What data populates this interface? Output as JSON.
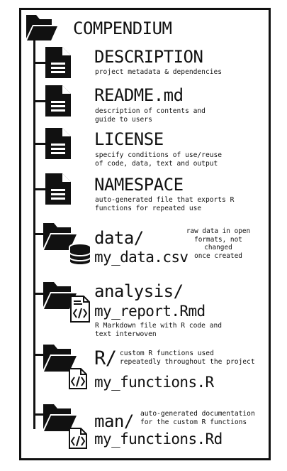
{
  "root": {
    "name": "COMPENDIUM",
    "icon": "folder-open-icon"
  },
  "items": [
    {
      "id": "description",
      "icon": "file-icon",
      "name": "DESCRIPTION",
      "desc": "project metadata & dependencies"
    },
    {
      "id": "readme",
      "icon": "file-icon",
      "name": "README.md",
      "desc": "description of contents and\nguide to users"
    },
    {
      "id": "license",
      "icon": "file-icon",
      "name": "LICENSE",
      "desc": "specify conditions of use/reuse\nof code, data, text and output"
    },
    {
      "id": "namespace",
      "icon": "file-icon",
      "name": "NAMESPACE",
      "desc": "auto-generated file that exports R\nfunctions for repeated use"
    },
    {
      "id": "data",
      "icon": "folder-database-icon",
      "name": "data/",
      "file": "my_data.csv",
      "desc": "raw data in open\nformats, not changed\nonce created"
    },
    {
      "id": "analysis",
      "icon": "folder-code-file-icon",
      "name": "analysis/",
      "file": "my_report.Rmd",
      "desc": "R Markdown file with R code and\ntext interwoven"
    },
    {
      "id": "r",
      "icon": "folder-code-icon",
      "name": "R/",
      "file": "my_functions.R",
      "desc": "custom R functions used\nrepeatedly throughout the project"
    },
    {
      "id": "man",
      "icon": "folder-code-icon",
      "name": "man/",
      "file": "my_functions.Rd",
      "desc": "auto-generated documentation\nfor the custom R functions"
    }
  ]
}
